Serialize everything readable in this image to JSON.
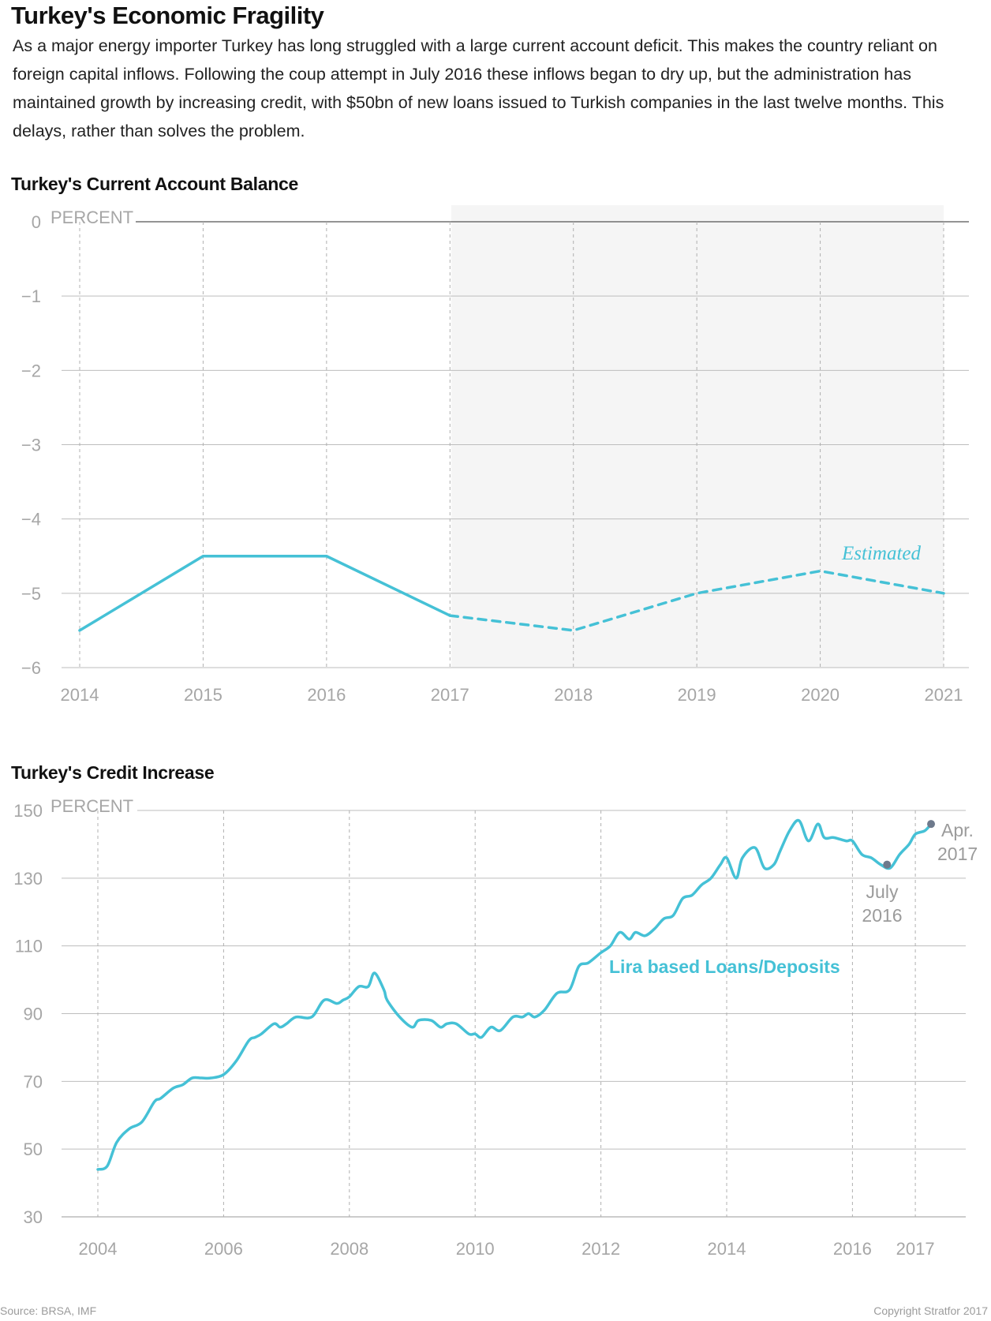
{
  "page": {
    "title": "Turkey's Economic Fragility",
    "intro": "As a major energy importer Turkey has long struggled with a large current account deficit. This makes the country reliant on foreign capital inflows. Following the coup attempt in July 2016 these inflows began to dry up, but the administration has maintained growth by increasing credit, with $50bn of new loans issued to Turkish companies in the last twelve months. This delays, rather than solves the problem.",
    "source": "Source: BRSA, IMF",
    "copyright": "Copyright Stratfor 2017"
  },
  "colors": {
    "line": "#45c1d6",
    "marker": "#6e7a8c",
    "shade": "#f5f5f5",
    "grid": "#bdbdbd",
    "tick": "#a6a6a6"
  },
  "chart_data": [
    {
      "type": "line",
      "title": "Turkey's Current Account Balance",
      "ylabel": "PERCENT",
      "ylim": [
        -6,
        0
      ],
      "yticks": [
        "0",
        "−1",
        "−2",
        "−3",
        "−4",
        "−5",
        "−6"
      ],
      "x": [
        "2014",
        "2015",
        "2016",
        "2017",
        "2018",
        "2019",
        "2020",
        "2021"
      ],
      "series": [
        {
          "values": [
            -5.5,
            -4.5,
            -4.5,
            -5.3,
            null,
            null,
            null,
            null
          ]
        },
        {
          "name": "Estimated",
          "style": "dashed",
          "values": [
            null,
            null,
            null,
            -5.3,
            -5.5,
            -5.0,
            -4.7,
            -5.0
          ]
        }
      ],
      "shaded_range": [
        "2017",
        "2021"
      ],
      "annotations": [
        {
          "text": "Estimated",
          "x": "2020",
          "y": -4.5
        }
      ],
      "grid": true
    },
    {
      "type": "line",
      "title": "Turkey's Credit Increase",
      "ylabel": "PERCENT",
      "ylim": [
        30,
        150
      ],
      "yticks": [
        "150",
        "130",
        "110",
        "90",
        "70",
        "50",
        "30"
      ],
      "xticks": [
        "2004",
        "2006",
        "2008",
        "2010",
        "2012",
        "2014",
        "2016",
        "2017"
      ],
      "xtick_years": [
        2004,
        2006,
        2008,
        2010,
        2012,
        2014,
        2016,
        2017
      ],
      "series": [
        {
          "name": "Lira based Loans/Deposits",
          "x": [
            2004.0,
            2004.15,
            2004.3,
            2004.5,
            2004.7,
            2004.9,
            2005.0,
            2005.2,
            2005.35,
            2005.5,
            2005.65,
            2005.8,
            2006.0,
            2006.2,
            2006.4,
            2006.5,
            2006.6,
            2006.8,
            2006.9,
            2007.0,
            2007.15,
            2007.4,
            2007.6,
            2007.8,
            2007.9,
            2008.0,
            2008.15,
            2008.3,
            2008.4,
            2008.55,
            2008.6,
            2008.8,
            2009.0,
            2009.1,
            2009.3,
            2009.45,
            2009.55,
            2009.7,
            2009.9,
            2010.0,
            2010.1,
            2010.25,
            2010.4,
            2010.6,
            2010.75,
            2010.85,
            2010.95,
            2011.1,
            2011.3,
            2011.5,
            2011.65,
            2011.8,
            2012.0,
            2012.15,
            2012.3,
            2012.45,
            2012.55,
            2012.7,
            2012.85,
            2013.0,
            2013.15,
            2013.3,
            2013.45,
            2013.6,
            2013.75,
            2013.9,
            2014.0,
            2014.15,
            2014.25,
            2014.45,
            2014.6,
            2014.75,
            2014.85,
            2015.0,
            2015.15,
            2015.3,
            2015.45,
            2015.55,
            2015.7,
            2015.9,
            2016.0,
            2016.15,
            2016.3,
            2016.45,
            2016.6,
            2016.75,
            2016.9,
            2017.0,
            2017.15,
            2017.25
          ],
          "values": [
            44,
            45,
            52,
            56,
            58,
            64,
            65,
            68,
            69,
            71,
            71,
            71,
            72,
            76,
            82,
            83,
            84,
            87,
            86,
            87,
            89,
            89,
            94,
            93,
            94,
            95,
            98,
            98,
            102,
            97,
            94,
            89,
            86,
            88,
            88,
            86,
            87,
            87,
            84,
            84,
            83,
            86,
            85,
            89,
            89,
            90,
            89,
            91,
            96,
            97,
            104,
            105,
            108,
            110,
            114,
            112,
            114,
            113,
            115,
            118,
            119,
            124,
            125,
            128,
            130,
            134,
            136,
            130,
            136,
            139,
            133,
            134,
            138,
            144,
            147,
            141,
            146,
            142,
            142,
            141,
            141,
            137,
            136,
            134,
            133,
            137,
            140,
            143,
            144,
            146
          ]
        }
      ],
      "markers": [
        {
          "label": "July 2016",
          "x": 2016.55,
          "y": 134
        },
        {
          "label": "Apr. 2017",
          "x": 2017.25,
          "y": 146
        }
      ],
      "grid": true
    }
  ],
  "labels": {
    "chart2_series": "Lira based Loans/Deposits",
    "marker_july_line1": "July",
    "marker_july_line2": "2016",
    "marker_apr_line1": "Apr.",
    "marker_apr_line2": "2017"
  }
}
